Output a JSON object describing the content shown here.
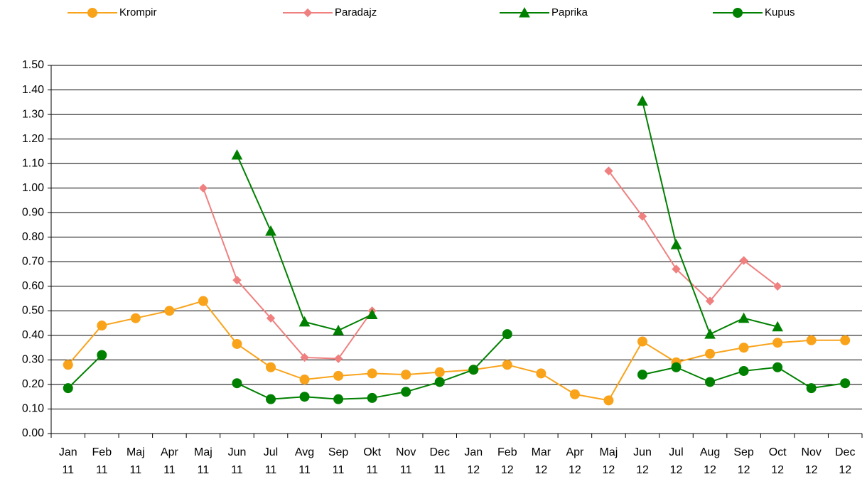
{
  "chart_data": {
    "type": "line",
    "categories": [
      "Jan 11",
      "Feb 11",
      "Maj 11",
      "Apr 11",
      "Maj 11",
      "Jun 11",
      "Jul 11",
      "Avg 11",
      "Sep 11",
      "Okt 11",
      "Nov 11",
      "Dec 11",
      "Jan 12",
      "Feb 12",
      "Mar 12",
      "Apr 12",
      "Maj 12",
      "Jun 12",
      "Jul 12",
      "Aug 12",
      "Sep 12",
      "Oct 12",
      "Nov 12",
      "Dec 12"
    ],
    "series": [
      {
        "name": "Krompir",
        "color": "#f9a31b",
        "marker": "circle",
        "values": [
          0.28,
          0.44,
          0.47,
          0.5,
          0.54,
          0.365,
          0.27,
          0.22,
          0.235,
          0.245,
          0.24,
          0.25,
          0.26,
          0.28,
          0.245,
          0.16,
          0.135,
          0.375,
          0.29,
          0.325,
          0.35,
          0.37,
          0.38,
          0.38
        ]
      },
      {
        "name": "Paradajz",
        "color": "#f08080",
        "marker": "diamond",
        "values": [
          null,
          null,
          null,
          null,
          1.0,
          0.625,
          0.47,
          0.31,
          0.305,
          0.5,
          null,
          null,
          null,
          null,
          null,
          null,
          1.07,
          0.885,
          0.67,
          0.54,
          0.705,
          0.6,
          null,
          null
        ]
      },
      {
        "name": "Paprika",
        "color": "#008000",
        "marker": "triangle",
        "values": [
          null,
          null,
          null,
          null,
          null,
          1.135,
          0.825,
          0.455,
          0.42,
          0.485,
          null,
          null,
          null,
          null,
          null,
          null,
          null,
          1.355,
          0.77,
          0.405,
          0.47,
          0.435,
          null,
          null
        ]
      },
      {
        "name": "Kupus",
        "color": "#008000",
        "marker": "circle",
        "values": [
          0.185,
          0.32,
          null,
          null,
          null,
          0.205,
          0.14,
          0.15,
          0.14,
          0.145,
          0.17,
          0.21,
          0.26,
          0.405,
          null,
          null,
          null,
          0.24,
          0.27,
          0.21,
          0.255,
          0.27,
          0.185,
          0.205
        ]
      }
    ],
    "ylim": [
      0,
      1.5
    ],
    "yticks": [
      {
        "value": 0,
        "label": "0.00"
      },
      {
        "value": 0.1,
        "label": "0.10"
      },
      {
        "value": 0.2,
        "label": "0.20"
      },
      {
        "value": 0.3,
        "label": "0.30"
      },
      {
        "value": 0.4,
        "label": "0.40"
      },
      {
        "value": 0.5,
        "label": "0.50"
      },
      {
        "value": 0.6,
        "label": "0.60"
      },
      {
        "value": 0.7,
        "label": "0.70"
      },
      {
        "value": 0.8,
        "label": "0.80"
      },
      {
        "value": 0.9,
        "label": "0.90"
      },
      {
        "value": 1.0,
        "label": "1.00"
      },
      {
        "value": 1.1,
        "label": "1.10"
      },
      {
        "value": 1.2,
        "label": "1.20"
      },
      {
        "value": 1.3,
        "label": "1.30"
      },
      {
        "value": 1.4,
        "label": "1.40"
      },
      {
        "value": 1.5,
        "label": "1.50"
      }
    ],
    "grid": true,
    "legend": "top"
  }
}
